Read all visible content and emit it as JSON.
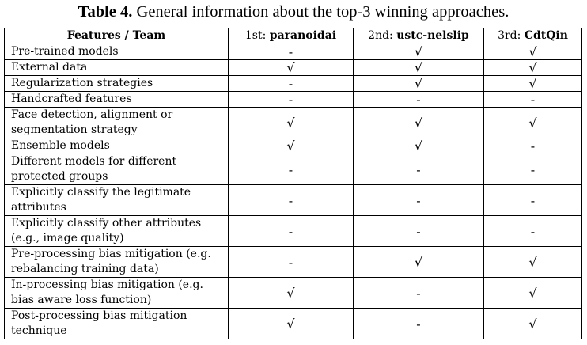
{
  "caption": {
    "label": "Table 4.",
    "text": " General information about the top-3 winning approaches."
  },
  "table": {
    "header": {
      "first": "Features / Team",
      "teams": [
        {
          "rank": "1st: ",
          "name": "paranoidai"
        },
        {
          "rank": "2nd: ",
          "name": "ustc-nelslip"
        },
        {
          "rank": "3rd: ",
          "name": "CdtQin"
        }
      ]
    },
    "rows": [
      {
        "feature": "Pre-trained models",
        "marks": [
          "-",
          "√",
          "√"
        ]
      },
      {
        "feature": "External data",
        "marks": [
          "√",
          "√",
          "√"
        ]
      },
      {
        "feature": "Regularization strategies",
        "marks": [
          "-",
          "√",
          "√"
        ]
      },
      {
        "feature": "Handcrafted features",
        "marks": [
          "-",
          "-",
          "-"
        ]
      },
      {
        "feature": "Face detection, alignment or segmentation strategy",
        "marks": [
          "√",
          "√",
          "√"
        ]
      },
      {
        "feature": "Ensemble models",
        "marks": [
          "√",
          "√",
          "-"
        ]
      },
      {
        "feature": "Different models for different protected groups",
        "marks": [
          "-",
          "-",
          "-"
        ]
      },
      {
        "feature": "Explicitly classify the legitimate attributes",
        "marks": [
          "-",
          "-",
          "-"
        ]
      },
      {
        "feature": "Explicitly classify other attributes (e.g., image quality)",
        "marks": [
          "-",
          "-",
          "-"
        ]
      },
      {
        "feature": "Pre-processing bias mitigation (e.g. rebalancing training data)",
        "marks": [
          "-",
          "√",
          "√"
        ]
      },
      {
        "feature": "In-processing bias mitigation (e.g. bias aware loss function)",
        "marks": [
          "√",
          "-",
          "√"
        ]
      },
      {
        "feature": "Post-processing bias mitigation technique",
        "marks": [
          "√",
          "-",
          "√"
        ]
      }
    ]
  }
}
